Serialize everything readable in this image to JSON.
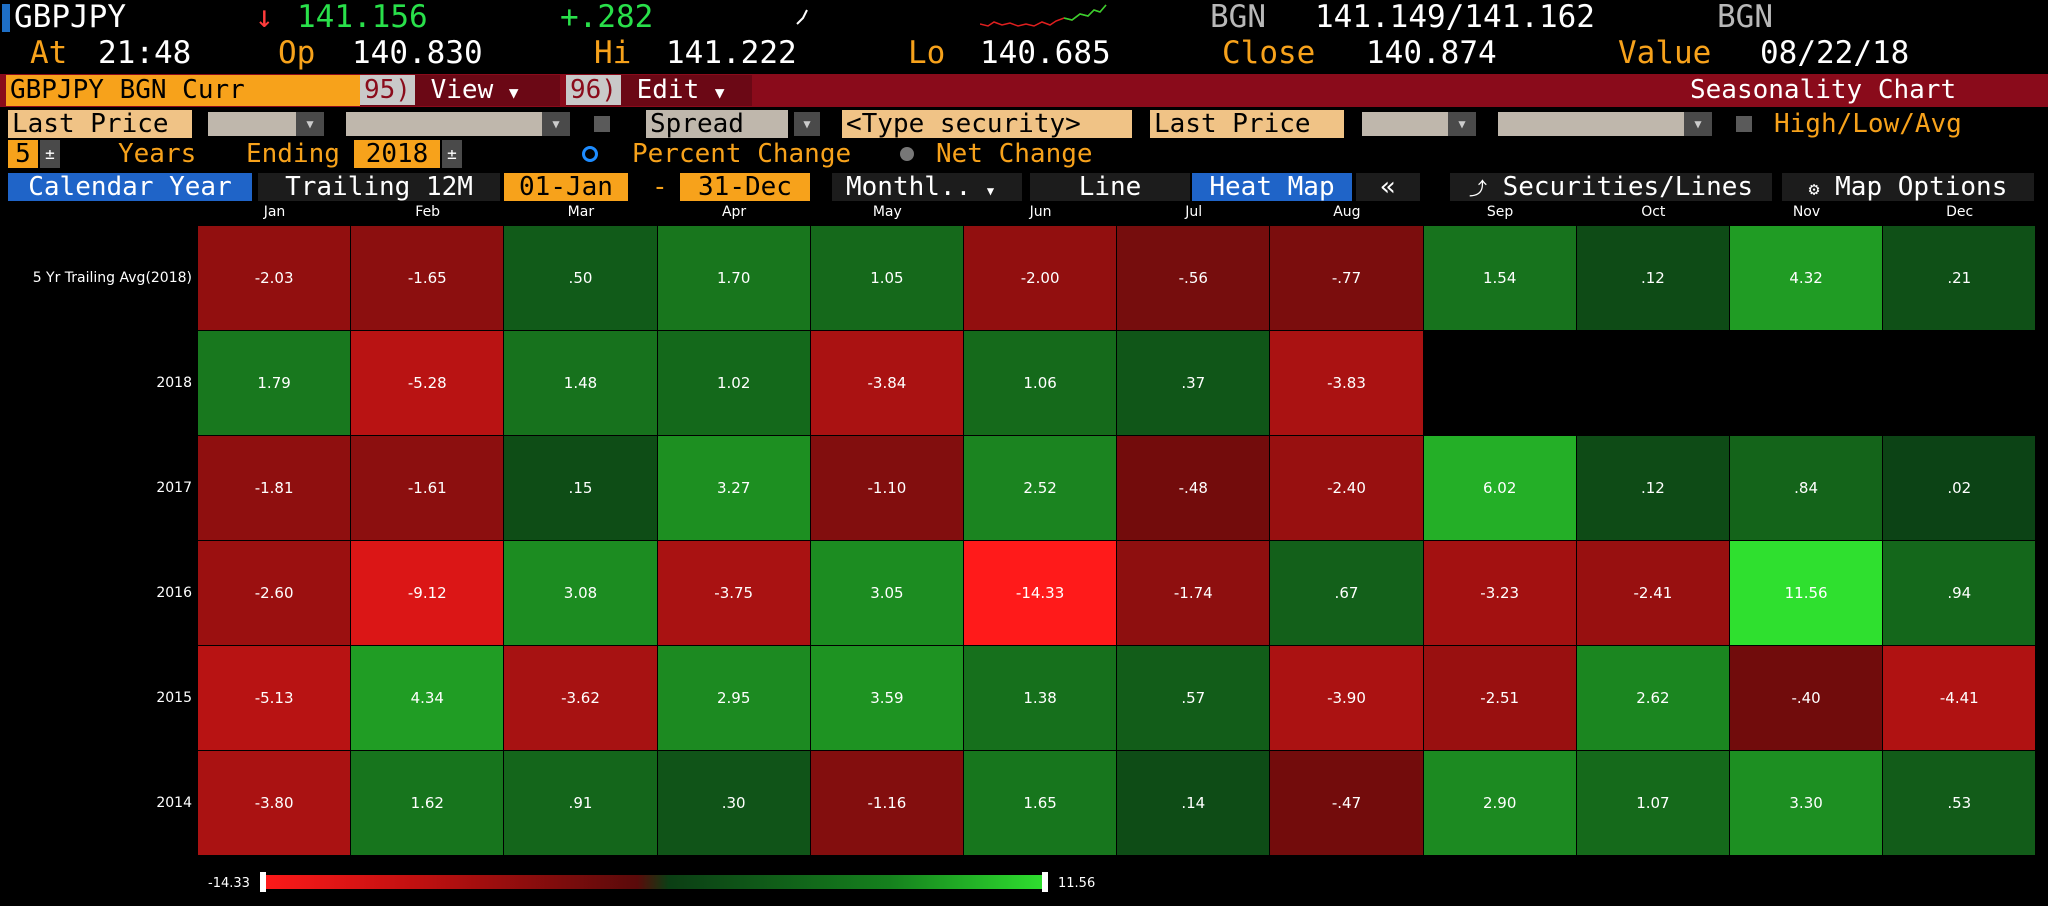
{
  "header": {
    "ticker": "GBPJPY",
    "arrow": "↓",
    "last": "141.156",
    "change": "+.282",
    "source_left": "BGN",
    "bid_ask": "141.149/141.162",
    "source_right": "BGN",
    "at_label": "At",
    "at_time": "21:48",
    "op_label": "Op",
    "op_value": "140.830",
    "hi_label": "Hi",
    "hi_value": "141.222",
    "lo_label": "Lo",
    "lo_value": "140.685",
    "close_label": "Close",
    "close_value": "140.874",
    "value_label": "Value",
    "value_date": "08/22/18"
  },
  "toolbar": {
    "security": "GBPJPY BGN Curr",
    "view_num": "95)",
    "view_label": "View",
    "edit_num": "96)",
    "edit_label": "Edit",
    "chart_title": "Seasonality Chart"
  },
  "row2": {
    "last_price_left": "Last Price",
    "spread_label": "Spread",
    "type_security_placeholder": "<Type security>",
    "last_price_right": "Last Price",
    "high_low_avg": "High/Low/Avg"
  },
  "row3": {
    "years_value": "5",
    "years_label": "Years",
    "ending_label": "Ending",
    "ending_year": "2018",
    "percent_change": "Percent Change",
    "net_change": "Net Change"
  },
  "row4": {
    "calendar_year": "Calendar Year",
    "trailing": "Trailing 12M",
    "date_from": "01-Jan",
    "dash": "-",
    "date_to": "31-Dec",
    "period": "Monthl..",
    "line": "Line",
    "heat_map": "Heat Map",
    "collapse": "«",
    "securities_lines": "Securities/Lines",
    "map_options": "Map Options"
  },
  "heatmap": {
    "months": [
      "Jan",
      "Feb",
      "Mar",
      "Apr",
      "May",
      "Jun",
      "Jul",
      "Aug",
      "Sep",
      "Oct",
      "Nov",
      "Dec"
    ],
    "rows": [
      {
        "label": "5 Yr Trailing Avg(2018)",
        "values": [
          "-2.03",
          "-1.65",
          ".50",
          "1.70",
          "1.05",
          "-2.00",
          "-.56",
          "-.77",
          "1.54",
          ".12",
          "4.32",
          ".21"
        ]
      },
      {
        "label": "2018",
        "values": [
          "1.79",
          "-5.28",
          "1.48",
          "1.02",
          "-3.84",
          "1.06",
          ".37",
          "-3.83",
          "",
          "",
          "",
          ""
        ]
      },
      {
        "label": "2017",
        "values": [
          "-1.81",
          "-1.61",
          ".15",
          "3.27",
          "-1.10",
          "2.52",
          "-.48",
          "-2.40",
          "6.02",
          ".12",
          ".84",
          ".02"
        ]
      },
      {
        "label": "2016",
        "values": [
          "-2.60",
          "-9.12",
          "3.08",
          "-3.75",
          "3.05",
          "-14.33",
          "-1.74",
          ".67",
          "-3.23",
          "-2.41",
          "11.56",
          ".94"
        ]
      },
      {
        "label": "2015",
        "values": [
          "-5.13",
          "4.34",
          "-3.62",
          "2.95",
          "3.59",
          "1.38",
          ".57",
          "-3.90",
          "-2.51",
          "2.62",
          "-.40",
          "-4.41"
        ]
      },
      {
        "label": "2014",
        "values": [
          "-3.80",
          "1.62",
          ".91",
          ".30",
          "-1.16",
          "1.65",
          ".14",
          "-.47",
          "2.90",
          "1.07",
          "3.30",
          ".53"
        ]
      }
    ],
    "scale_min": "-14.33",
    "scale_max": "11.56"
  },
  "colors": {
    "red_max": "#ff1a1a",
    "green_max": "#2fe02f",
    "dark_red": "#5a0a0a",
    "dark_green": "#0b3e14",
    "orange": "#f7a21b",
    "maroon": "#8a0b1b",
    "blue": "#1f64c8"
  }
}
